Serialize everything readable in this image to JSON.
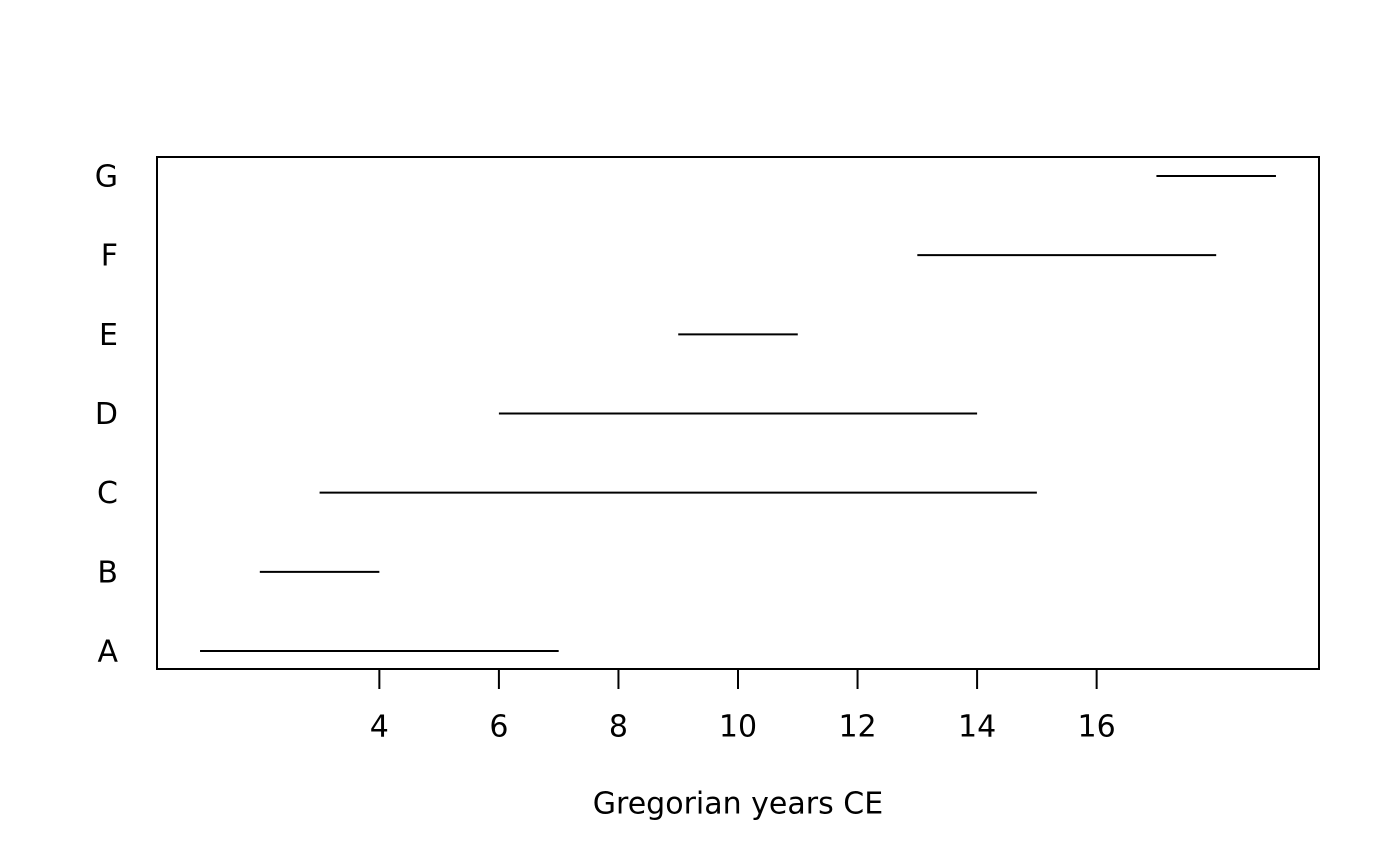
{
  "chart_data": {
    "type": "interval",
    "categories": [
      "A",
      "B",
      "C",
      "D",
      "E",
      "F",
      "G"
    ],
    "starts": [
      1,
      2,
      3,
      6,
      9,
      13,
      17
    ],
    "ends": [
      7,
      4,
      15,
      14,
      11,
      18,
      19
    ],
    "color": "#000000",
    "xlabel": "Gregorian years CE",
    "xlim": [
      0.28,
      19.72
    ],
    "xticks": [
      4,
      6,
      8,
      10,
      12,
      14,
      16
    ]
  }
}
